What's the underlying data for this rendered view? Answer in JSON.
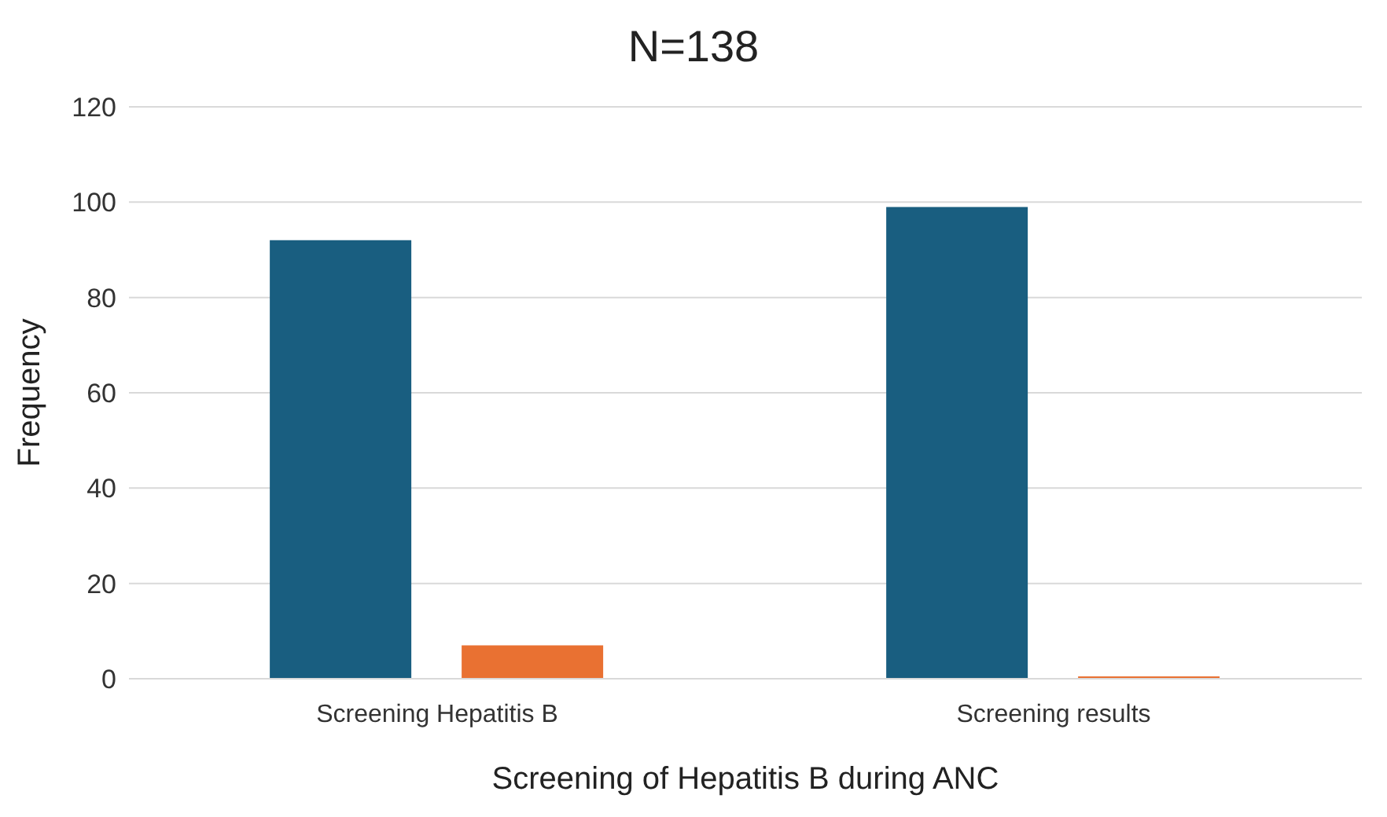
{
  "chart_data": {
    "type": "bar",
    "title": "N=138",
    "xlabel": "Screening of Hepatitis B during ANC",
    "ylabel": "Frequency",
    "categories": [
      "Screening Hepatitis B",
      "Screening results"
    ],
    "series": [
      {
        "color": "#195e80",
        "values": [
          92,
          99
        ]
      },
      {
        "color": "#e97132",
        "values": [
          7,
          0.5
        ]
      }
    ],
    "ylim": [
      0,
      120
    ],
    "yticks": [
      0,
      20,
      40,
      60,
      80,
      100,
      120
    ],
    "grid": "y"
  }
}
